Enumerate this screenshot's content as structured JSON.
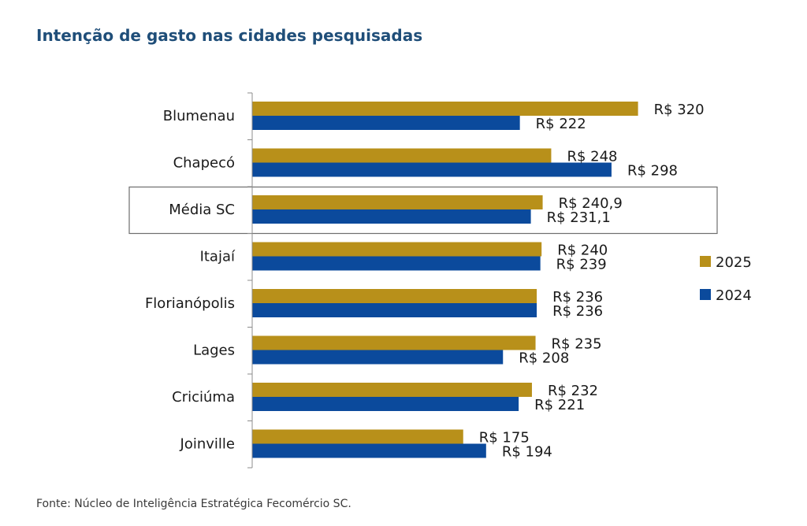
{
  "chart_data": {
    "type": "bar",
    "orientation": "horizontal",
    "title": "Intenção de gasto nas cidades pesquisadas",
    "categories": [
      "Blumenau",
      "Chapecó",
      "Média SC",
      "Itajaí",
      "Florianópolis",
      "Lages",
      "Criciúma",
      "Joinville"
    ],
    "highlighted_category": "Média SC",
    "series": [
      {
        "name": "2025",
        "color": "#b8901a",
        "values": [
          320,
          248,
          240.9,
          240,
          236,
          235,
          232,
          175
        ],
        "labels": [
          "R$ 320",
          "R$ 248",
          "R$ 240,9",
          "R$ 240",
          "R$ 236",
          "R$ 235",
          "R$ 232",
          "R$ 175"
        ]
      },
      {
        "name": "2024",
        "color": "#0b4a9c",
        "values": [
          222,
          298,
          231.1,
          239,
          236,
          208,
          221,
          194
        ],
        "labels": [
          "R$ 222",
          "R$ 298",
          "R$ 231,1",
          "R$ 239",
          "R$ 236",
          "R$ 208",
          "R$ 221",
          "R$ 194"
        ]
      }
    ],
    "xlim": [
      0,
      330
    ],
    "grid": false,
    "legend": "right"
  },
  "source_note": "Fonte: Núcleo de Inteligência Estratégica Fecomércio SC."
}
